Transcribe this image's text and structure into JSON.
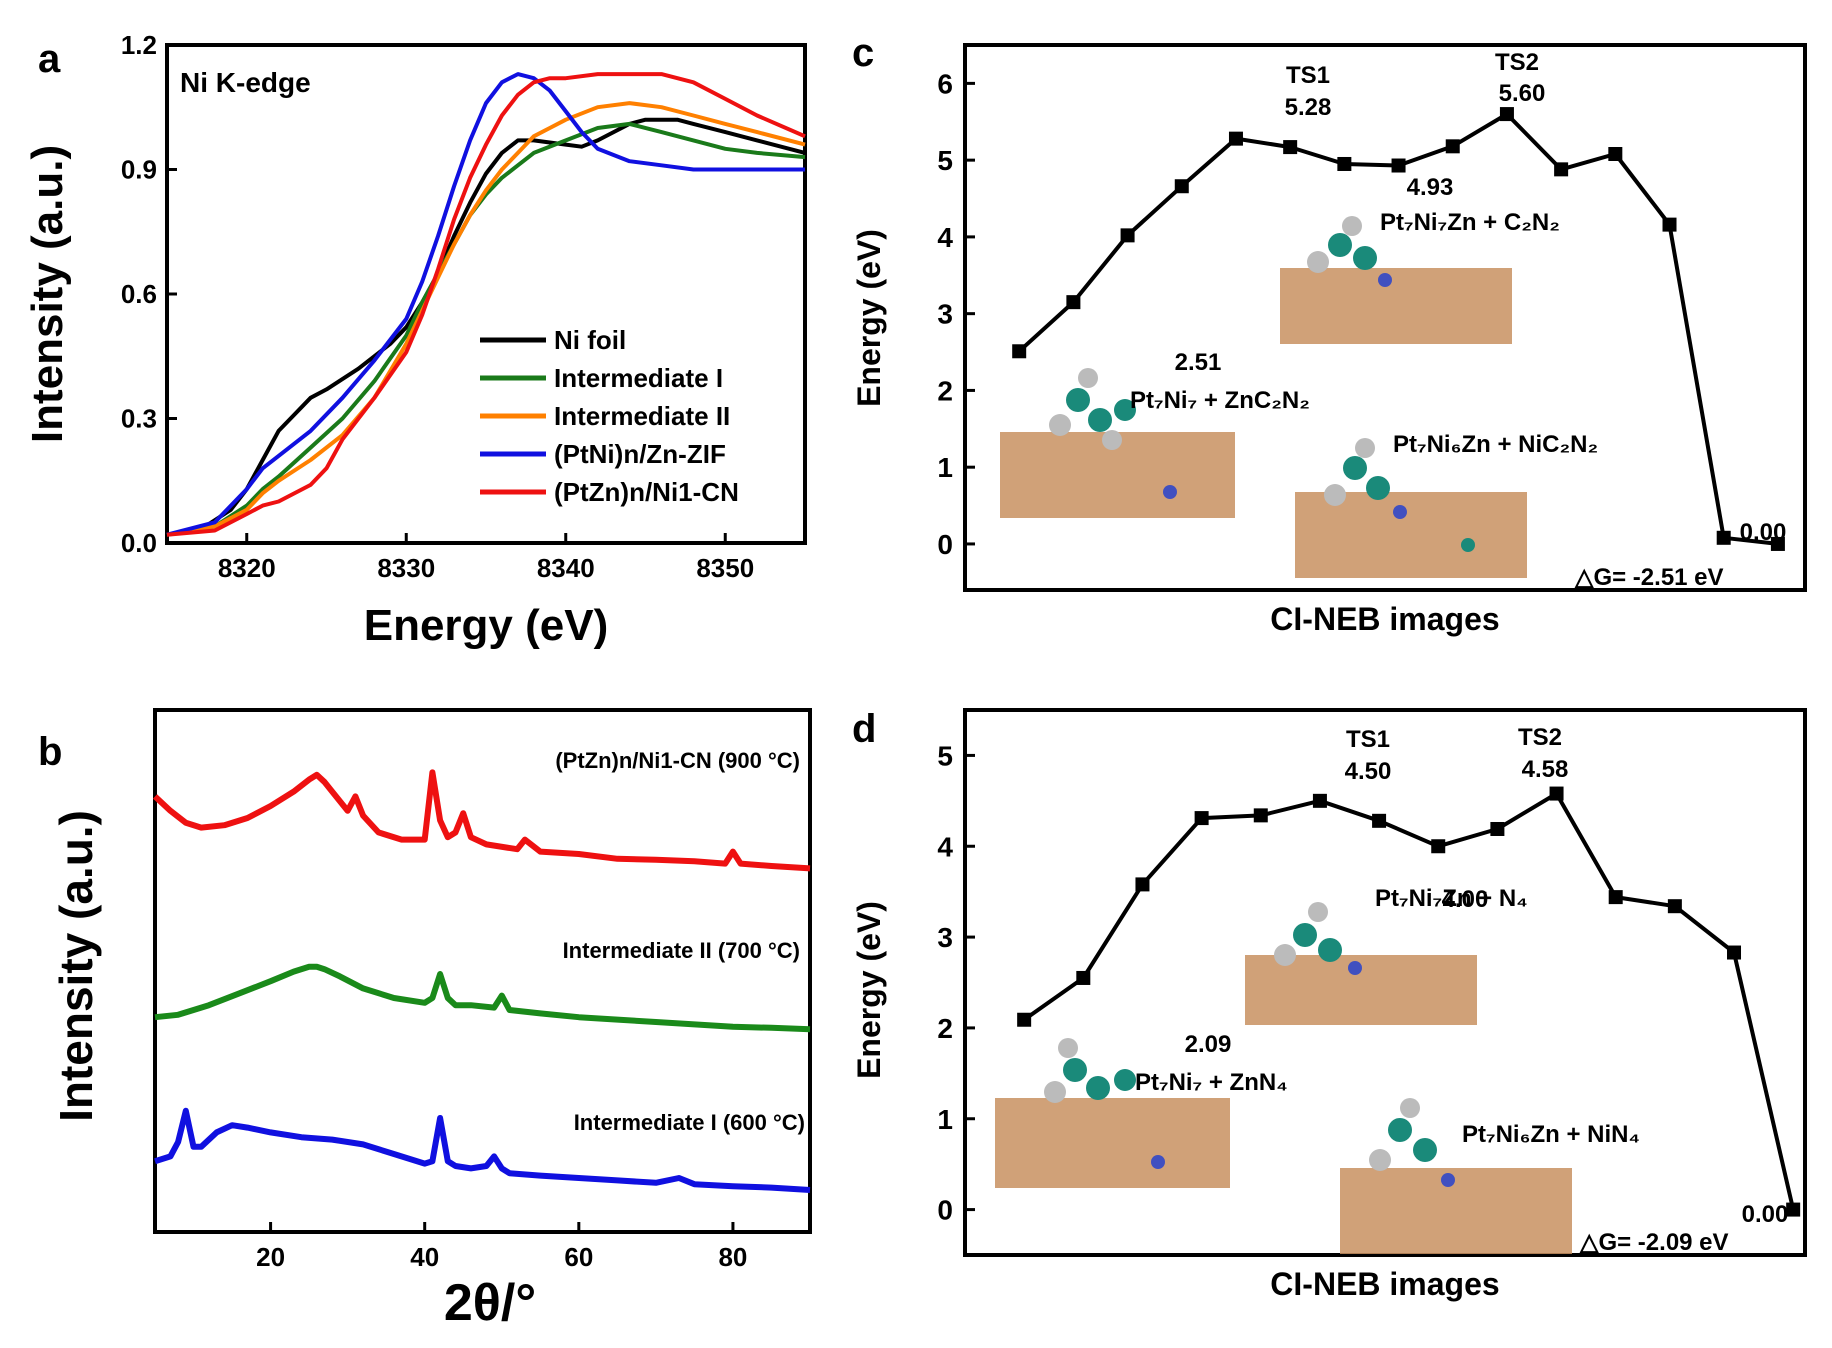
{
  "chart_data": [
    {
      "panel": "a",
      "type": "line",
      "title": "Ni K-edge",
      "xlabel": "Energy (eV)",
      "ylabel": "Intensity (a.u.)",
      "xlim": [
        8315,
        8355
      ],
      "ylim": [
        0,
        1.2
      ],
      "xticks": [
        "8320",
        "8330",
        "8340",
        "8350"
      ],
      "xtick_values": [
        8320,
        8330,
        8340,
        8350
      ],
      "yticks": [
        "0.0",
        "0.3",
        "0.6",
        "0.9",
        "1.2"
      ],
      "ytick_values": [
        0,
        0.3,
        0.6,
        0.9,
        1.2
      ],
      "legend_position": "bottom-right",
      "series": [
        {
          "name": "Ni foil",
          "color": "#000000",
          "x": [
            8315,
            8317,
            8319,
            8320,
            8321,
            8322,
            8323,
            8324,
            8325,
            8327,
            8329,
            8330,
            8331,
            8332,
            8333,
            8334,
            8335,
            8336,
            8337,
            8338,
            8339,
            8340,
            8341,
            8342,
            8343,
            8344,
            8345,
            8346,
            8347,
            8348,
            8350,
            8352,
            8355
          ],
          "y": [
            0.02,
            0.03,
            0.08,
            0.13,
            0.2,
            0.27,
            0.31,
            0.35,
            0.37,
            0.42,
            0.48,
            0.52,
            0.58,
            0.65,
            0.74,
            0.82,
            0.89,
            0.94,
            0.97,
            0.97,
            0.965,
            0.96,
            0.955,
            0.97,
            0.99,
            1.01,
            1.02,
            1.02,
            1.02,
            1.01,
            0.99,
            0.97,
            0.94
          ]
        },
        {
          "name": "Intermediate I",
          "color": "#1a7a1a",
          "x": [
            8315,
            8318,
            8320,
            8321,
            8322,
            8324,
            8326,
            8328,
            8330,
            8331,
            8332,
            8333,
            8334,
            8335,
            8336,
            8337,
            8338,
            8340,
            8342,
            8344,
            8346,
            8348,
            8350,
            8352,
            8355
          ],
          "y": [
            0.02,
            0.04,
            0.09,
            0.13,
            0.16,
            0.23,
            0.3,
            0.39,
            0.5,
            0.58,
            0.65,
            0.72,
            0.79,
            0.84,
            0.88,
            0.91,
            0.94,
            0.97,
            1.0,
            1.01,
            0.99,
            0.97,
            0.95,
            0.94,
            0.93
          ]
        },
        {
          "name": "Intermediate II",
          "color": "#ff8000",
          "x": [
            8315,
            8318,
            8320,
            8321,
            8322,
            8324,
            8326,
            8328,
            8330,
            8331,
            8332,
            8333,
            8334,
            8335,
            8336,
            8337,
            8338,
            8339,
            8340,
            8342,
            8344,
            8346,
            8348,
            8350,
            8352,
            8355
          ],
          "y": [
            0.02,
            0.04,
            0.08,
            0.12,
            0.15,
            0.2,
            0.26,
            0.35,
            0.48,
            0.56,
            0.64,
            0.72,
            0.79,
            0.85,
            0.9,
            0.94,
            0.98,
            1.0,
            1.02,
            1.05,
            1.06,
            1.05,
            1.03,
            1.01,
            0.99,
            0.96
          ]
        },
        {
          "name": "(PtNi)n/Zn-ZIF",
          "color": "#1010e0",
          "x": [
            8315,
            8318,
            8320,
            8321,
            8322,
            8324,
            8326,
            8328,
            8330,
            8331,
            8332,
            8333,
            8334,
            8335,
            8336,
            8337,
            8338,
            8339,
            8340,
            8341,
            8342,
            8344,
            8346,
            8348,
            8350,
            8352,
            8355
          ],
          "y": [
            0.02,
            0.05,
            0.13,
            0.18,
            0.21,
            0.27,
            0.35,
            0.44,
            0.54,
            0.63,
            0.74,
            0.86,
            0.97,
            1.06,
            1.11,
            1.13,
            1.12,
            1.09,
            1.04,
            0.99,
            0.95,
            0.92,
            0.91,
            0.9,
            0.9,
            0.9,
            0.9
          ]
        },
        {
          "name": "(PtZn)n/Ni1-CN",
          "color": "#ee1111",
          "x": [
            8315,
            8318,
            8320,
            8321,
            8322,
            8324,
            8325,
            8326,
            8328,
            8330,
            8331,
            8332,
            8333,
            8334,
            8335,
            8336,
            8337,
            8338,
            8339,
            8340,
            8342,
            8344,
            8346,
            8348,
            8350,
            8352,
            8355
          ],
          "y": [
            0.02,
            0.03,
            0.07,
            0.09,
            0.1,
            0.14,
            0.18,
            0.25,
            0.35,
            0.46,
            0.55,
            0.66,
            0.78,
            0.88,
            0.96,
            1.03,
            1.08,
            1.11,
            1.12,
            1.12,
            1.13,
            1.13,
            1.13,
            1.11,
            1.07,
            1.03,
            0.98
          ]
        }
      ]
    },
    {
      "panel": "b",
      "type": "line",
      "xlabel": "2θ/°",
      "ylabel": "Intensity (a.u.)",
      "xlim": [
        5,
        90
      ],
      "xticks": [
        "20",
        "40",
        "60",
        "80"
      ],
      "xtick_values": [
        20,
        40,
        60,
        80
      ],
      "ylim": [
        0,
        10
      ],
      "series": [
        {
          "name": "(PtZn)n/Ni1-CN (900 °C)",
          "color": "#ee1111",
          "offset": 6.6,
          "x": [
            5,
            7,
            9,
            11,
            14,
            17,
            20,
            23,
            25,
            26,
            27,
            28,
            30,
            31,
            32,
            34,
            37,
            40,
            41,
            42,
            43,
            44,
            45,
            46,
            48,
            52,
            53,
            55,
            60,
            65,
            70,
            75,
            79,
            80,
            81,
            85,
            90
          ],
          "y": [
            1.6,
            1.3,
            1.05,
            0.95,
            1.0,
            1.15,
            1.4,
            1.7,
            1.95,
            2.05,
            1.9,
            1.7,
            1.3,
            1.6,
            1.2,
            0.85,
            0.7,
            0.7,
            2.1,
            1.1,
            0.75,
            0.85,
            1.25,
            0.75,
            0.6,
            0.5,
            0.7,
            0.45,
            0.4,
            0.3,
            0.28,
            0.25,
            0.2,
            0.45,
            0.2,
            0.15,
            0.1
          ]
        },
        {
          "name": "Intermediate II (700 °C)",
          "color": "#1a8a1a",
          "offset": 3.3,
          "x": [
            5,
            8,
            12,
            16,
            20,
            23,
            25,
            26,
            27,
            29,
            32,
            36,
            40,
            41,
            42,
            43,
            44,
            46,
            49,
            50,
            51,
            55,
            60,
            65,
            70,
            75,
            80,
            85,
            90
          ],
          "y": [
            0.3,
            0.35,
            0.55,
            0.8,
            1.05,
            1.25,
            1.35,
            1.35,
            1.3,
            1.15,
            0.9,
            0.7,
            0.6,
            0.7,
            1.2,
            0.7,
            0.55,
            0.55,
            0.5,
            0.75,
            0.45,
            0.38,
            0.3,
            0.25,
            0.2,
            0.15,
            0.1,
            0.08,
            0.05
          ]
        },
        {
          "name": "Intermediate I (600 °C)",
          "color": "#1010e0",
          "offset": 0,
          "x": [
            5,
            7,
            8,
            9,
            10,
            11,
            13,
            15,
            17,
            20,
            24,
            28,
            32,
            36,
            40,
            41,
            42,
            43,
            44,
            46,
            48,
            49,
            50,
            51,
            55,
            60,
            65,
            70,
            73,
            75,
            80,
            85,
            90
          ],
          "y": [
            0.6,
            0.7,
            1.0,
            1.65,
            0.9,
            0.9,
            1.2,
            1.35,
            1.3,
            1.2,
            1.1,
            1.05,
            0.95,
            0.75,
            0.55,
            0.6,
            1.5,
            0.6,
            0.5,
            0.45,
            0.5,
            0.7,
            0.45,
            0.35,
            0.3,
            0.25,
            0.2,
            0.15,
            0.25,
            0.12,
            0.08,
            0.05,
            0.0
          ]
        }
      ],
      "labels": [
        "(PtZn)n/Ni1-CN (900 °C)",
        "Intermediate II (700 °C)",
        "Intermediate I (600 °C)"
      ]
    },
    {
      "panel": "c",
      "type": "line",
      "xlabel": "CI-NEB images",
      "ylabel": "Energy (eV)",
      "ylim": [
        -0.6,
        6.5
      ],
      "xlim": [
        0,
        15.5
      ],
      "yticks": [
        "0",
        "1",
        "2",
        "3",
        "4",
        "5",
        "6"
      ],
      "ytick_values": [
        0,
        1,
        2,
        3,
        4,
        5,
        6
      ],
      "x": [
        1,
        2,
        3,
        4,
        5,
        6,
        7,
        8,
        9,
        10,
        11,
        12,
        13,
        14,
        15
      ],
      "values": [
        2.51,
        3.15,
        4.02,
        4.66,
        5.28,
        5.17,
        4.95,
        4.93,
        5.18,
        5.6,
        4.88,
        5.08,
        4.16,
        0.08,
        0.0
      ],
      "annotations": {
        "ts1_label": "TS1",
        "ts1_value": "5.28",
        "ts2_label": "TS2",
        "ts2_value": "5.60",
        "min_value": "4.93",
        "start_value": "2.51",
        "end_value": "0.00",
        "state_start": "Pt₇Ni₇ + ZnC₂N₂",
        "state_mid": "Pt₇Ni₇Zn + C₂N₂",
        "state_end": "Pt₇Ni₆Zn + NiC₂N₂",
        "delta_g": "△G= -2.51 eV"
      }
    },
    {
      "panel": "d",
      "type": "line",
      "xlabel": "CI-NEB images",
      "ylabel": "Energy (eV)",
      "ylim": [
        -0.5,
        5.5
      ],
      "xlim": [
        0,
        14.2
      ],
      "yticks": [
        "0",
        "1",
        "2",
        "3",
        "4",
        "5"
      ],
      "ytick_values": [
        0,
        1,
        2,
        3,
        4,
        5
      ],
      "x": [
        1,
        2,
        3,
        4,
        5,
        6,
        7,
        8,
        9,
        10,
        11,
        12,
        13,
        14
      ],
      "values": [
        2.09,
        2.55,
        3.58,
        4.31,
        4.34,
        4.5,
        4.28,
        4.0,
        4.19,
        4.58,
        3.44,
        3.34,
        2.83,
        0.0
      ],
      "annotations": {
        "ts1_label": "TS1",
        "ts1_value": "4.50",
        "ts2_label": "TS2",
        "ts2_value": "4.58",
        "min_value": "4.00",
        "start_value": "2.09",
        "end_value": "0.00",
        "state_start": "Pt₇Ni₇ + ZnN₄",
        "state_mid": "Pt₇Ni₇Zn + N₄",
        "state_end": "Pt₇Ni₆Zn + NiN₄",
        "delta_g": "△G= -2.09 eV"
      }
    }
  ],
  "panel_letters": {
    "a": "a",
    "b": "b",
    "c": "c",
    "d": "d"
  }
}
